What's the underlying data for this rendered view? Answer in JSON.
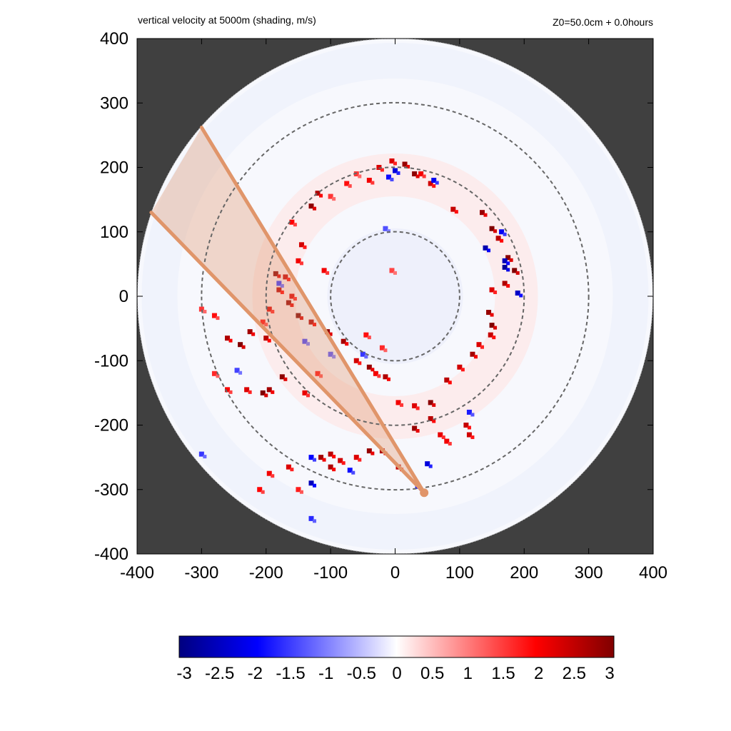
{
  "chart_data": {
    "type": "heatmap",
    "title": "vertical velocity at 5000m (shading, m/s)",
    "subtitle": "Z0=50.0cm  + 0.0hours",
    "xlabel": "",
    "ylabel": "",
    "xlim": [
      -400,
      400
    ],
    "ylim": [
      -400,
      400
    ],
    "x_ticks": [
      -400,
      -300,
      -200,
      -100,
      0,
      100,
      200,
      300,
      400
    ],
    "y_ticks": [
      -400,
      -300,
      -200,
      -100,
      0,
      100,
      200,
      300,
      400
    ],
    "x_tick_labels": [
      "-400",
      "-300",
      "-200",
      "-100",
      "0",
      "100",
      "200",
      "300",
      "400"
    ],
    "y_tick_labels": [
      "400",
      "300",
      "200",
      "100",
      "0",
      "-100",
      "-200",
      "-300",
      "-400"
    ],
    "domain_radius": 400,
    "range_rings": [
      100,
      200,
      300
    ],
    "outside_domain_color": "#404040",
    "colorbar": {
      "min": -3,
      "max": 3,
      "ticks": [
        -3,
        -2.5,
        -2,
        -1.5,
        -1,
        -0.5,
        0,
        0.5,
        1,
        1.5,
        2,
        2.5,
        3
      ],
      "tick_labels": [
        "-3",
        "-2.5",
        "-2",
        "-1.5",
        "-1",
        "-0.5",
        "0",
        "0.5",
        "1",
        "1.5",
        "2",
        "2.5",
        "3"
      ],
      "colors": [
        "#000080",
        "#0000ff",
        "#ffffff",
        "#ff0000",
        "#800000"
      ]
    },
    "sector": {
      "apex": [
        45,
        -305
      ],
      "edge_points": [
        [
          -300,
          262
        ],
        [
          -378,
          130
        ]
      ],
      "color": "#e0956a"
    },
    "updraft_cells": [
      [
        15,
        205,
        2.8
      ],
      [
        -5,
        210,
        2.2
      ],
      [
        30,
        190,
        2.9
      ],
      [
        55,
        175,
        2.3
      ],
      [
        -40,
        180,
        2.0
      ],
      [
        -75,
        175,
        1.8
      ],
      [
        -120,
        160,
        2.6
      ],
      [
        -130,
        140,
        2.9
      ],
      [
        -100,
        155,
        1.5
      ],
      [
        90,
        135,
        2.4
      ],
      [
        135,
        130,
        2.8
      ],
      [
        150,
        105,
        3.0
      ],
      [
        160,
        90,
        2.5
      ],
      [
        175,
        60,
        2.9
      ],
      [
        185,
        40,
        3.0
      ],
      [
        170,
        20,
        2.6
      ],
      [
        150,
        10,
        2.2
      ],
      [
        145,
        -25,
        2.8
      ],
      [
        150,
        -45,
        3.0
      ],
      [
        148,
        -60,
        2.4
      ],
      [
        130,
        -75,
        2.2
      ],
      [
        120,
        -90,
        2.7
      ],
      [
        100,
        -110,
        2.3
      ],
      [
        80,
        -130,
        2.5
      ],
      [
        55,
        -165,
        2.9
      ],
      [
        30,
        -170,
        2.2
      ],
      [
        5,
        -165,
        2.0
      ],
      [
        -15,
        -125,
        2.6
      ],
      [
        -40,
        -110,
        2.8
      ],
      [
        -60,
        -100,
        2.3
      ],
      [
        -80,
        -70,
        2.7
      ],
      [
        -105,
        -55,
        2.9
      ],
      [
        -130,
        -40,
        2.6
      ],
      [
        -150,
        -30,
        3.0
      ],
      [
        -165,
        -10,
        2.8
      ],
      [
        -180,
        10,
        2.5
      ],
      [
        -185,
        35,
        2.9
      ],
      [
        -170,
        30,
        2.4
      ],
      [
        -150,
        55,
        2.0
      ],
      [
        -145,
        80,
        2.3
      ],
      [
        -160,
        115,
        1.9
      ],
      [
        -110,
        40,
        2.0
      ],
      [
        -200,
        -65,
        2.5
      ],
      [
        -225,
        -55,
        2.7
      ],
      [
        -240,
        -75,
        3.0
      ],
      [
        -260,
        -65,
        2.6
      ],
      [
        -175,
        -125,
        2.9
      ],
      [
        -195,
        -145,
        2.7
      ],
      [
        -205,
        -150,
        3.0
      ],
      [
        -230,
        -145,
        2.2
      ],
      [
        -140,
        -150,
        2.1
      ],
      [
        -115,
        -250,
        2.7
      ],
      [
        -100,
        -245,
        2.5
      ],
      [
        -85,
        -255,
        2.3
      ],
      [
        -60,
        -250,
        2.2
      ],
      [
        -40,
        -240,
        2.8
      ],
      [
        -20,
        -240,
        2.6
      ],
      [
        5,
        -265,
        2.4
      ],
      [
        30,
        -205,
        2.8
      ],
      [
        55,
        -190,
        2.5
      ],
      [
        70,
        -215,
        2.1
      ],
      [
        80,
        -225,
        2.0
      ],
      [
        110,
        -200,
        2.4
      ],
      [
        -165,
        -265,
        2.2
      ],
      [
        -195,
        -275,
        2.0
      ],
      [
        -150,
        -300,
        1.7
      ],
      [
        -210,
        -300,
        1.9
      ],
      [
        -100,
        -265,
        2.6
      ],
      [
        -30,
        -120,
        2.0
      ],
      [
        -20,
        -80,
        1.6
      ],
      [
        -45,
        -60,
        1.8
      ],
      [
        -5,
        40,
        1.4
      ],
      [
        40,
        190,
        2.0
      ],
      [
        -25,
        200,
        2.2
      ],
      [
        -60,
        190,
        1.5
      ],
      [
        -160,
        0,
        2.2
      ],
      [
        -195,
        -20,
        2.2
      ],
      [
        -205,
        -40,
        1.8
      ],
      [
        115,
        -215,
        2.3
      ],
      [
        -260,
        -145,
        1.9
      ],
      [
        -280,
        -120,
        1.6
      ],
      [
        -120,
        -120,
        1.8
      ],
      [
        -280,
        -30,
        1.8
      ],
      [
        -300,
        -20,
        1.5
      ]
    ],
    "downdraft_cells": [
      [
        0,
        195,
        -2.2
      ],
      [
        -10,
        185,
        -1.8
      ],
      [
        60,
        180,
        -2.0
      ],
      [
        140,
        75,
        -2.6
      ],
      [
        170,
        45,
        -2.8
      ],
      [
        170,
        55,
        -2.5
      ],
      [
        190,
        5,
        -2.4
      ],
      [
        165,
        100,
        -2.0
      ],
      [
        -180,
        20,
        -1.5
      ],
      [
        -70,
        -270,
        -1.8
      ],
      [
        -130,
        -250,
        -1.9
      ],
      [
        -130,
        -290,
        -2.5
      ],
      [
        -130,
        -345,
        -1.6
      ],
      [
        35,
        -295,
        -1.8
      ],
      [
        50,
        -260,
        -2.2
      ],
      [
        -50,
        -90,
        -1.5
      ],
      [
        -140,
        -70,
        -1.4
      ],
      [
        115,
        -180,
        -1.7
      ],
      [
        -300,
        -245,
        -1.5
      ],
      [
        -245,
        -115,
        -1.4
      ],
      [
        -100,
        -90,
        -1.3
      ],
      [
        -15,
        105,
        -1.3
      ]
    ]
  }
}
